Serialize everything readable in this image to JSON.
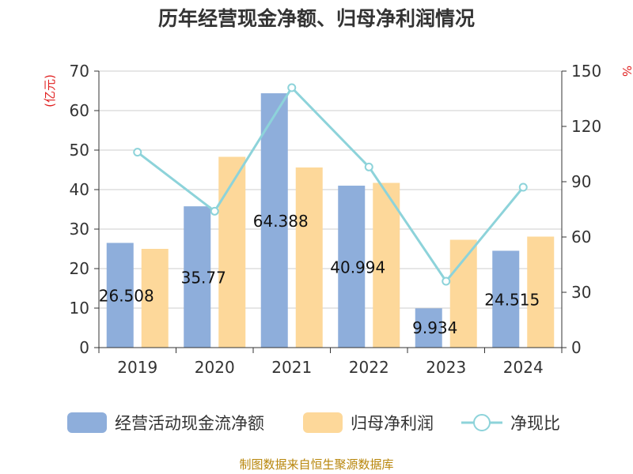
{
  "chart_data": {
    "type": "bar",
    "title": "历年经营现金净额、归母净利润情况",
    "categories": [
      "2019",
      "2020",
      "2021",
      "2022",
      "2023",
      "2024"
    ],
    "y_left": {
      "unit": "(亿元)",
      "ylim": [
        0,
        70
      ],
      "ticks": [
        "0",
        "10",
        "20",
        "30",
        "40",
        "50",
        "60",
        "70"
      ]
    },
    "y_right": {
      "unit": "%",
      "ylim": [
        0,
        150
      ],
      "ticks": [
        "0",
        "30",
        "60",
        "90",
        "120",
        "150"
      ]
    },
    "series": [
      {
        "name": "经营活动现金流净额",
        "type": "bar",
        "axis": "left",
        "color": "#8eaedb",
        "values": [
          26.508,
          35.77,
          64.388,
          40.994,
          9.934,
          24.515
        ],
        "labels": [
          "26.508",
          "35.77",
          "64.388",
          "40.994",
          "9.934",
          "24.515"
        ]
      },
      {
        "name": "归母净利润",
        "type": "bar",
        "axis": "left",
        "color": "#fdd89a",
        "values": [
          25.0,
          48.3,
          45.6,
          41.7,
          27.3,
          28.1
        ]
      },
      {
        "name": "净现比",
        "type": "line",
        "axis": "right",
        "color": "#8dd3da",
        "values": [
          106,
          74,
          141,
          98,
          36,
          87
        ]
      }
    ],
    "grid": true,
    "legend": "bottom"
  },
  "source": "制图数据来自恒生聚源数据库"
}
